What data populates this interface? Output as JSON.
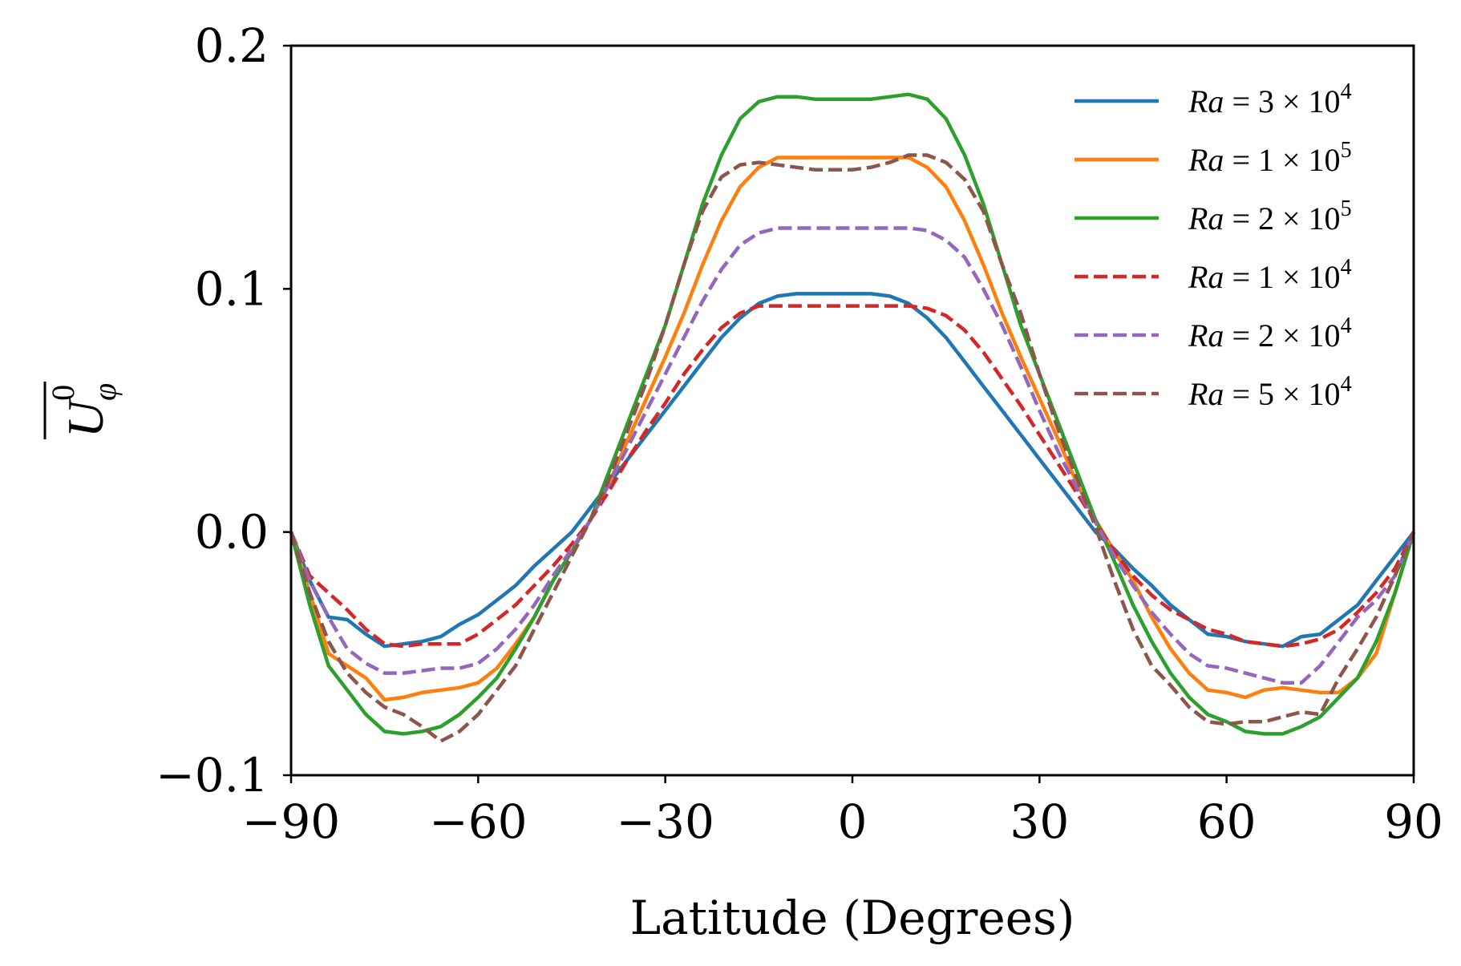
{
  "chart_data": {
    "type": "line",
    "title": "",
    "xlabel": "Latitude (Degrees)",
    "ylabel": {
      "base": "U",
      "sub": "φ",
      "sup": "0",
      "overline": true
    },
    "xlim": [
      -90,
      90
    ],
    "ylim": [
      -0.1,
      0.2
    ],
    "xticks": [
      -90,
      -60,
      -30,
      0,
      30,
      60,
      90
    ],
    "xtick_labels": [
      "−90",
      "−60",
      "−30",
      "0",
      "30",
      "60",
      "90"
    ],
    "yticks": [
      -0.1,
      0.0,
      0.1,
      0.2
    ],
    "ytick_labels": [
      "−0.1",
      "0.0",
      "0.1",
      "0.2"
    ],
    "legend_position": "top-right",
    "series": [
      {
        "name": "Ra = 3 × 10^4",
        "label_prefix": "Ra",
        "label_coef": "3",
        "label_exp": "4",
        "color": "#1f77b4",
        "style": "solid",
        "x": [
          -90,
          -87,
          -84,
          -81,
          -78,
          -75,
          -72,
          -69,
          -66,
          -63,
          -60,
          -57,
          -54,
          -51,
          -48,
          -45,
          -42,
          -39,
          -36,
          -33,
          -30,
          -27,
          -24,
          -21,
          -18,
          -15,
          -12,
          -9,
          -6,
          -3,
          0,
          3,
          6,
          9,
          12,
          15,
          18,
          21,
          24,
          27,
          30,
          33,
          36,
          39,
          42,
          45,
          48,
          51,
          54,
          57,
          60,
          63,
          66,
          69,
          72,
          75,
          78,
          81,
          84,
          87,
          90
        ],
        "y": [
          0,
          -0.02,
          -0.035,
          -0.036,
          -0.042,
          -0.047,
          -0.046,
          -0.045,
          -0.043,
          -0.038,
          -0.034,
          -0.028,
          -0.022,
          -0.014,
          -0.007,
          0,
          0.01,
          0.02,
          0.03,
          0.04,
          0.05,
          0.06,
          0.07,
          0.08,
          0.088,
          0.094,
          0.097,
          0.098,
          0.098,
          0.098,
          0.098,
          0.098,
          0.097,
          0.094,
          0.088,
          0.08,
          0.07,
          0.06,
          0.05,
          0.04,
          0.03,
          0.02,
          0.01,
          0,
          -0.007,
          -0.015,
          -0.022,
          -0.03,
          -0.036,
          -0.042,
          -0.043,
          -0.045,
          -0.046,
          -0.047,
          -0.043,
          -0.042,
          -0.036,
          -0.03,
          -0.02,
          -0.01,
          0
        ]
      },
      {
        "name": "Ra = 1 × 10^5",
        "label_prefix": "Ra",
        "label_coef": "1",
        "label_exp": "5",
        "color": "#ff7f0e",
        "style": "solid",
        "x": [
          -90,
          -87,
          -84,
          -81,
          -78,
          -75,
          -72,
          -69,
          -66,
          -63,
          -60,
          -57,
          -54,
          -51,
          -48,
          -45,
          -42,
          -39,
          -36,
          -33,
          -30,
          -27,
          -24,
          -21,
          -18,
          -15,
          -12,
          -9,
          -6,
          -3,
          0,
          3,
          6,
          9,
          12,
          15,
          18,
          21,
          24,
          27,
          30,
          33,
          36,
          39,
          42,
          45,
          48,
          51,
          54,
          57,
          60,
          63,
          66,
          69,
          72,
          75,
          78,
          81,
          84,
          87,
          90
        ],
        "y": [
          0,
          -0.025,
          -0.05,
          -0.055,
          -0.06,
          -0.069,
          -0.068,
          -0.066,
          -0.065,
          -0.064,
          -0.062,
          -0.056,
          -0.046,
          -0.035,
          -0.02,
          -0.008,
          0.005,
          0.02,
          0.038,
          0.055,
          0.072,
          0.09,
          0.11,
          0.128,
          0.142,
          0.15,
          0.154,
          0.154,
          0.154,
          0.154,
          0.154,
          0.154,
          0.154,
          0.154,
          0.15,
          0.142,
          0.128,
          0.11,
          0.09,
          0.072,
          0.055,
          0.038,
          0.02,
          0.005,
          -0.008,
          -0.02,
          -0.035,
          -0.048,
          -0.058,
          -0.065,
          -0.066,
          -0.068,
          -0.065,
          -0.064,
          -0.065,
          -0.066,
          -0.066,
          -0.06,
          -0.05,
          -0.025,
          0
        ]
      },
      {
        "name": "Ra = 2 × 10^5",
        "label_prefix": "Ra",
        "label_coef": "2",
        "label_exp": "5",
        "color": "#2ca02c",
        "style": "solid",
        "x": [
          -90,
          -87,
          -84,
          -81,
          -78,
          -75,
          -72,
          -69,
          -66,
          -63,
          -60,
          -57,
          -54,
          -51,
          -48,
          -45,
          -42,
          -39,
          -36,
          -33,
          -30,
          -27,
          -24,
          -21,
          -18,
          -15,
          -12,
          -9,
          -6,
          -3,
          0,
          3,
          6,
          9,
          12,
          15,
          18,
          21,
          24,
          27,
          30,
          33,
          36,
          39,
          42,
          45,
          48,
          51,
          54,
          57,
          60,
          63,
          66,
          69,
          72,
          75,
          78,
          81,
          84,
          87,
          90
        ],
        "y": [
          0,
          -0.03,
          -0.055,
          -0.065,
          -0.075,
          -0.082,
          -0.083,
          -0.082,
          -0.08,
          -0.075,
          -0.068,
          -0.06,
          -0.048,
          -0.035,
          -0.02,
          -0.008,
          0.005,
          0.025,
          0.045,
          0.065,
          0.085,
          0.11,
          0.135,
          0.155,
          0.17,
          0.177,
          0.179,
          0.179,
          0.178,
          0.178,
          0.178,
          0.178,
          0.179,
          0.18,
          0.178,
          0.17,
          0.155,
          0.135,
          0.11,
          0.085,
          0.065,
          0.045,
          0.025,
          0.005,
          -0.012,
          -0.03,
          -0.045,
          -0.058,
          -0.068,
          -0.075,
          -0.078,
          -0.082,
          -0.083,
          -0.083,
          -0.08,
          -0.076,
          -0.068,
          -0.06,
          -0.045,
          -0.025,
          0
        ]
      },
      {
        "name": "Ra = 1 × 10^4",
        "label_prefix": "Ra",
        "label_coef": "1",
        "label_exp": "4",
        "color": "#d62728",
        "style": "dashed",
        "x": [
          -90,
          -87,
          -84,
          -81,
          -78,
          -75,
          -72,
          -69,
          -66,
          -63,
          -60,
          -57,
          -54,
          -51,
          -48,
          -45,
          -42,
          -39,
          -36,
          -33,
          -30,
          -27,
          -24,
          -21,
          -18,
          -15,
          -12,
          -9,
          -6,
          -3,
          0,
          3,
          6,
          9,
          12,
          15,
          18,
          21,
          24,
          27,
          30,
          33,
          36,
          39,
          42,
          45,
          48,
          51,
          54,
          57,
          60,
          63,
          66,
          69,
          72,
          75,
          78,
          81,
          84,
          87,
          90
        ],
        "y": [
          0,
          -0.018,
          -0.025,
          -0.032,
          -0.04,
          -0.046,
          -0.047,
          -0.046,
          -0.046,
          -0.046,
          -0.042,
          -0.036,
          -0.03,
          -0.022,
          -0.014,
          -0.005,
          0.005,
          0.017,
          0.03,
          0.042,
          0.053,
          0.065,
          0.075,
          0.084,
          0.09,
          0.093,
          0.093,
          0.093,
          0.093,
          0.093,
          0.093,
          0.093,
          0.093,
          0.093,
          0.092,
          0.089,
          0.083,
          0.074,
          0.063,
          0.052,
          0.04,
          0.028,
          0.016,
          0.004,
          -0.008,
          -0.018,
          -0.026,
          -0.032,
          -0.036,
          -0.04,
          -0.042,
          -0.045,
          -0.046,
          -0.047,
          -0.046,
          -0.044,
          -0.04,
          -0.033,
          -0.025,
          -0.015,
          0
        ]
      },
      {
        "name": "Ra = 2 × 10^4",
        "label_prefix": "Ra",
        "label_coef": "2",
        "label_exp": "4",
        "color": "#9467bd",
        "style": "dashed",
        "x": [
          -90,
          -87,
          -84,
          -81,
          -78,
          -75,
          -72,
          -69,
          -66,
          -63,
          -60,
          -57,
          -54,
          -51,
          -48,
          -45,
          -42,
          -39,
          -36,
          -33,
          -30,
          -27,
          -24,
          -21,
          -18,
          -15,
          -12,
          -9,
          -6,
          -3,
          0,
          3,
          6,
          9,
          12,
          15,
          18,
          21,
          24,
          27,
          30,
          33,
          36,
          39,
          42,
          45,
          48,
          51,
          54,
          57,
          60,
          63,
          66,
          69,
          72,
          75,
          78,
          81,
          84,
          87,
          90
        ],
        "y": [
          0,
          -0.02,
          -0.035,
          -0.048,
          -0.054,
          -0.058,
          -0.058,
          -0.057,
          -0.056,
          -0.056,
          -0.054,
          -0.048,
          -0.04,
          -0.03,
          -0.018,
          -0.007,
          0.005,
          0.02,
          0.035,
          0.05,
          0.065,
          0.08,
          0.095,
          0.108,
          0.118,
          0.123,
          0.125,
          0.125,
          0.125,
          0.125,
          0.125,
          0.125,
          0.125,
          0.125,
          0.124,
          0.12,
          0.113,
          0.1,
          0.085,
          0.068,
          0.05,
          0.033,
          0.018,
          0.004,
          -0.01,
          -0.022,
          -0.033,
          -0.042,
          -0.05,
          -0.055,
          -0.056,
          -0.058,
          -0.06,
          -0.062,
          -0.062,
          -0.055,
          -0.045,
          -0.035,
          -0.028,
          -0.018,
          0
        ]
      },
      {
        "name": "Ra = 5 × 10^4",
        "label_prefix": "Ra",
        "label_coef": "5",
        "label_exp": "4",
        "color": "#8c564b",
        "style": "dashed",
        "x": [
          -90,
          -87,
          -84,
          -81,
          -78,
          -75,
          -72,
          -69,
          -66,
          -63,
          -60,
          -57,
          -54,
          -51,
          -48,
          -45,
          -42,
          -39,
          -36,
          -33,
          -30,
          -27,
          -24,
          -21,
          -18,
          -15,
          -12,
          -9,
          -6,
          -3,
          0,
          3,
          6,
          9,
          12,
          15,
          18,
          21,
          24,
          27,
          30,
          33,
          36,
          39,
          42,
          45,
          48,
          51,
          54,
          57,
          60,
          63,
          66,
          69,
          72,
          75,
          78,
          81,
          84,
          87,
          90
        ],
        "y": [
          0,
          -0.025,
          -0.045,
          -0.058,
          -0.066,
          -0.072,
          -0.075,
          -0.08,
          -0.086,
          -0.082,
          -0.075,
          -0.065,
          -0.055,
          -0.04,
          -0.025,
          -0.01,
          0.005,
          0.022,
          0.042,
          0.062,
          0.085,
          0.11,
          0.132,
          0.146,
          0.151,
          0.152,
          0.151,
          0.15,
          0.149,
          0.149,
          0.149,
          0.15,
          0.152,
          0.155,
          0.155,
          0.152,
          0.145,
          0.132,
          0.11,
          0.09,
          0.065,
          0.042,
          0.022,
          0.002,
          -0.02,
          -0.04,
          -0.055,
          -0.063,
          -0.072,
          -0.078,
          -0.079,
          -0.078,
          -0.078,
          -0.076,
          -0.074,
          -0.075,
          -0.06,
          -0.048,
          -0.035,
          -0.018,
          0
        ]
      }
    ]
  }
}
